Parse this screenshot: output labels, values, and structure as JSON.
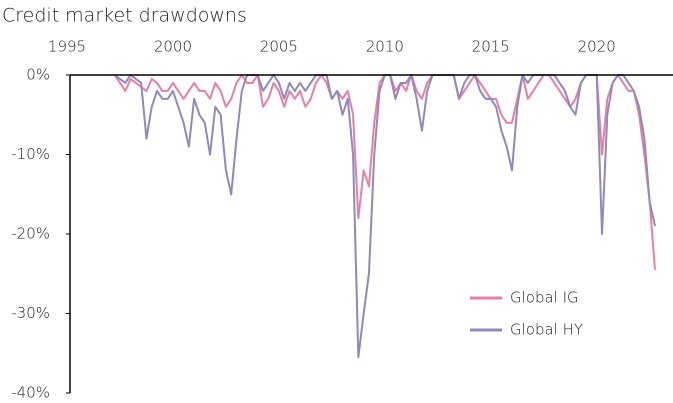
{
  "chart_data": {
    "type": "line",
    "title": "Credit market drawdowns",
    "x": [
      1997.25,
      1997.5,
      1997.75,
      1998,
      1998.25,
      1998.5,
      1998.75,
      1999,
      1999.25,
      1999.5,
      1999.75,
      2000,
      2000.25,
      2000.5,
      2000.75,
      2001,
      2001.25,
      2001.5,
      2001.75,
      2002,
      2002.25,
      2002.5,
      2002.75,
      2003,
      2003.25,
      2003.5,
      2003.75,
      2004,
      2004.25,
      2004.5,
      2004.75,
      2005,
      2005.25,
      2005.5,
      2005.75,
      2006,
      2006.25,
      2006.5,
      2006.75,
      2007,
      2007.25,
      2007.5,
      2007.75,
      2008,
      2008.25,
      2008.5,
      2008.75,
      2009,
      2009.25,
      2009.5,
      2009.75,
      2010,
      2010.25,
      2010.5,
      2010.75,
      2011,
      2011.25,
      2011.5,
      2011.75,
      2012,
      2012.25,
      2012.5,
      2012.75,
      2013,
      2013.25,
      2013.5,
      2013.75,
      2014,
      2014.25,
      2014.5,
      2014.75,
      2015,
      2015.25,
      2015.5,
      2015.75,
      2016,
      2016.25,
      2016.5,
      2016.75,
      2017,
      2017.25,
      2017.5,
      2017.75,
      2018,
      2018.25,
      2018.5,
      2018.75,
      2019,
      2019.25,
      2019.5,
      2019.75,
      2020,
      2020.25,
      2020.5,
      2020.75,
      2021,
      2021.25,
      2021.5,
      2021.75,
      2022,
      2022.25,
      2022.5,
      2022.75
    ],
    "series": [
      {
        "name": "Global IG",
        "color": "#e87fa3",
        "values": [
          0,
          -1,
          -2,
          -0.5,
          -1,
          -1.5,
          -2,
          -0.5,
          -1,
          -2,
          -2,
          -1,
          -2,
          -3,
          -2,
          -1,
          -2,
          -2,
          -3,
          -1,
          -2,
          -4,
          -3,
          -1,
          0,
          -1,
          -1,
          0,
          -4,
          -3,
          -1,
          -2,
          -4,
          -2,
          -3,
          -2,
          -4,
          -3,
          -1,
          0,
          -1,
          -3,
          -2,
          -3,
          -2,
          -5,
          -18,
          -12,
          -14,
          -6,
          -1,
          0,
          0,
          -2,
          -1,
          -2,
          0,
          -2,
          -3,
          -1,
          0,
          0,
          0,
          0,
          0,
          -3,
          -2,
          -1,
          0,
          -1,
          -2,
          -3,
          -3,
          -5,
          -6,
          -6,
          -3,
          0,
          -3,
          -2,
          -1,
          0,
          0,
          -1,
          -2,
          -3,
          -4,
          -3,
          -1,
          0,
          0,
          0,
          -10,
          -3,
          -1,
          0,
          -1,
          -2,
          -2,
          -5,
          -10,
          -16,
          -24.5
        ]
      },
      {
        "name": "Global HY",
        "color": "#8f89bf",
        "values": [
          0,
          -0.5,
          -1,
          0,
          -0.5,
          -1,
          -8,
          -4,
          -2,
          -3,
          -3,
          -2,
          -4,
          -6,
          -9,
          -3,
          -5,
          -6,
          -10,
          -4,
          -5,
          -12,
          -15,
          -8,
          -2,
          0,
          0,
          0,
          -2,
          -1,
          0,
          -1,
          -3,
          -1,
          -2,
          -1,
          -2,
          -1,
          0,
          0,
          0,
          -3,
          -2,
          -5,
          -3,
          -10,
          -35.5,
          -30,
          -25,
          -10,
          -2,
          0,
          0,
          -3,
          -1,
          -1,
          0,
          -3,
          -7,
          -2,
          0,
          0,
          0,
          0,
          0,
          -3,
          -1,
          0,
          0,
          -2,
          -3,
          -3,
          -4,
          -7,
          -9,
          -12,
          -4,
          0,
          -1,
          0,
          0,
          0,
          0,
          0,
          -1,
          -2,
          -4,
          -5,
          -1,
          0,
          0,
          0,
          -20,
          -5,
          -1,
          0,
          0,
          -1,
          -2,
          -4,
          -8,
          -16,
          -19
        ]
      }
    ],
    "xlim": [
      1995,
      2023.6
    ],
    "xticks": [
      1995,
      2000,
      2005,
      2010,
      2015,
      2020
    ],
    "ylim": [
      -40,
      0
    ],
    "yticks": [
      {
        "value": 0,
        "label": "0%"
      },
      {
        "value": -10,
        "label": "-10%"
      },
      {
        "value": -20,
        "label": "-20%"
      },
      {
        "value": -30,
        "label": "-30%"
      },
      {
        "value": -40,
        "label": "-40%"
      }
    ],
    "legend": "lower right"
  }
}
